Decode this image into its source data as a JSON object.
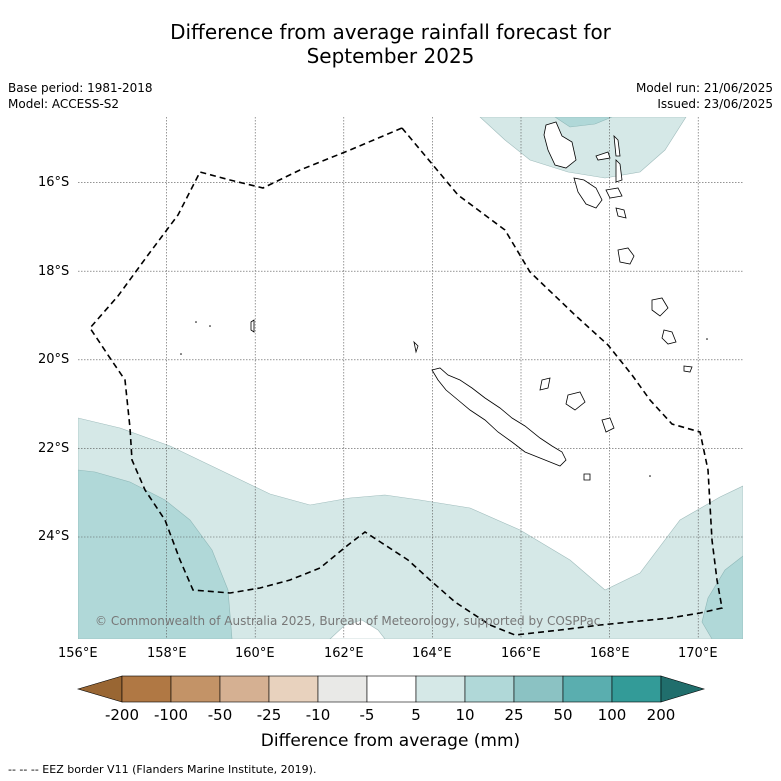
{
  "title_line1": "Difference from average rainfall forecast for",
  "title_line2": "September 2025",
  "meta": {
    "base_period": "Base period: 1981-2018",
    "model": "Model: ACCESS-S2",
    "model_run": "Model run: 21/06/2025",
    "issued": "Issued: 23/06/2025"
  },
  "lat_labels": [
    "16°S",
    "18°S",
    "20°S",
    "22°S",
    "24°S"
  ],
  "lon_labels": [
    "156°E",
    "158°E",
    "160°E",
    "162°E",
    "164°E",
    "166°E",
    "168°E",
    "170°E"
  ],
  "copyright": "© Commonwealth of Australia 2025, Bureau of Meteorology, supported by COSPPac",
  "colorbar": {
    "labels": [
      "-200",
      "-100",
      "-50",
      "-25",
      "-10",
      "-5",
      "5",
      "10",
      "25",
      "50",
      "100",
      "200"
    ],
    "colors": [
      "#996633",
      "#b07844",
      "#c39367",
      "#d5b092",
      "#e8d2be",
      "#e9e9e7",
      "#ffffff",
      "#d5e8e7",
      "#b0d8d8",
      "#8bc2c3",
      "#5aaeaf",
      "#339b98",
      "#206e6c"
    ],
    "title": "Difference from average (mm)"
  },
  "legend_note": "--  --  -- EEZ border V11 (Flanders Marine Institute, 2019)."
}
